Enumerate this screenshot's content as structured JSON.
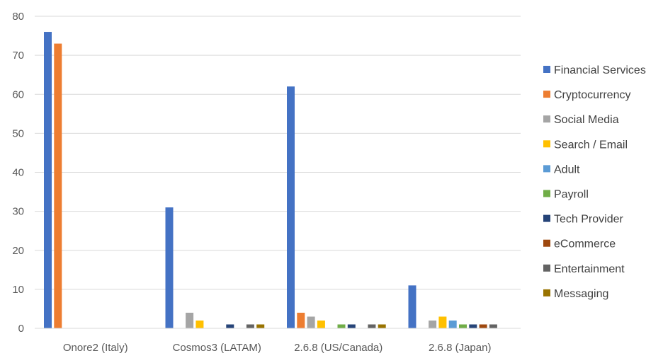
{
  "chart_data": {
    "type": "bar",
    "categories": [
      "Onore2 (Italy)",
      "Cosmos3 (LATAM)",
      "2.6.8 (US/Canada)",
      "2.6.8 (Japan)"
    ],
    "series": [
      {
        "name": "Financial Services",
        "color": "#4472C4",
        "values": [
          76,
          31,
          62,
          11
        ]
      },
      {
        "name": "Cryptocurrency",
        "color": "#ED7D31",
        "values": [
          73,
          0,
          4,
          0
        ]
      },
      {
        "name": "Social Media",
        "color": "#A5A5A5",
        "values": [
          0,
          4,
          3,
          2
        ]
      },
      {
        "name": "Search / Email",
        "color": "#FFC000",
        "values": [
          0,
          2,
          2,
          3
        ]
      },
      {
        "name": "Adult",
        "color": "#5B9BD5",
        "values": [
          0,
          0,
          0,
          2
        ]
      },
      {
        "name": "Payroll",
        "color": "#70AD47",
        "values": [
          0,
          0,
          1,
          1
        ]
      },
      {
        "name": "Tech Provider",
        "color": "#264478",
        "values": [
          0,
          1,
          1,
          1
        ]
      },
      {
        "name": "eCommerce",
        "color": "#9E480E",
        "values": [
          0,
          0,
          0,
          1
        ]
      },
      {
        "name": "Entertainment",
        "color": "#636363",
        "values": [
          0,
          1,
          1,
          1
        ]
      },
      {
        "name": "Messaging",
        "color": "#997300",
        "values": [
          0,
          1,
          1,
          0
        ]
      }
    ],
    "y_ticks": [
      "0",
      "10",
      "20",
      "30",
      "40",
      "50",
      "60",
      "70",
      "80"
    ],
    "ylim": [
      0,
      80
    ],
    "grid": true,
    "legend_position": "right"
  }
}
